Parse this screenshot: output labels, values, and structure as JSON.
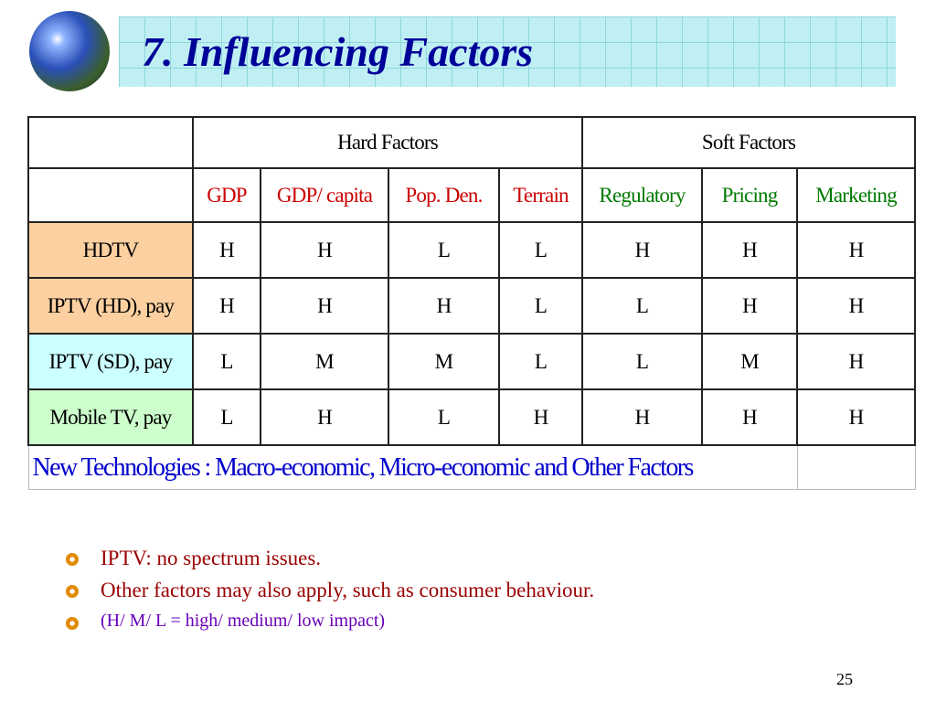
{
  "title": "7. Influencing Factors",
  "table": {
    "groups": [
      "Hard Factors",
      "Soft Factors"
    ],
    "columns": [
      "GDP",
      "GDP/ capita",
      "Pop. Den.",
      "Terrain",
      "Regulatory",
      "Pricing",
      "Marketing"
    ],
    "rows": [
      {
        "label": "HDTV",
        "values": [
          "H",
          "H",
          "L",
          "L",
          "H",
          "H",
          "H"
        ]
      },
      {
        "label": "IPTV (HD), pay",
        "values": [
          "H",
          "H",
          "H",
          "L",
          "L",
          "H",
          "H"
        ]
      },
      {
        "label": "IPTV (SD), pay",
        "values": [
          "L",
          "M",
          "M",
          "L",
          "L",
          "M",
          "H"
        ]
      },
      {
        "label": "Mobile TV, pay",
        "values": [
          "L",
          "H",
          "L",
          "H",
          "H",
          "H",
          "H"
        ]
      }
    ],
    "footer": "New Technologies : Macro-economic, Micro-economic and Other Factors"
  },
  "bullets": [
    "IPTV: no spectrum issues.",
    "Other factors may also apply, such as consumer behaviour.",
    "(H/ M/ L = high/ medium/ low  impact)"
  ],
  "page_number": "25"
}
